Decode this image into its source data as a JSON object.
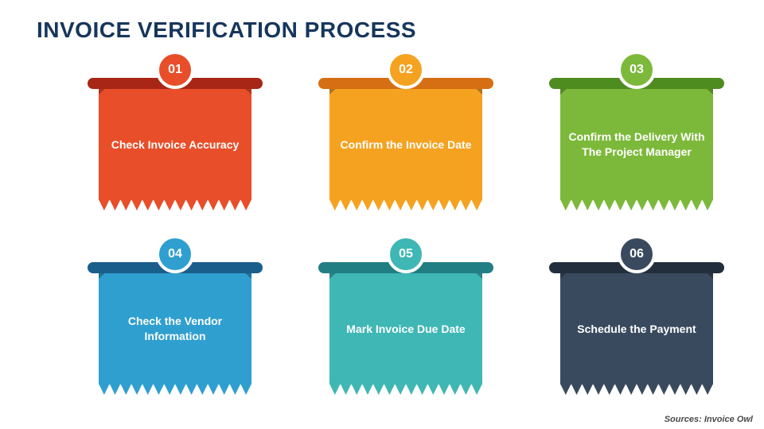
{
  "title": {
    "text": "INVOICE VERIFICATION PROCESS",
    "color": "#16365c",
    "fontsize": 28
  },
  "background": "#ffffff",
  "grid": {
    "cols": 3,
    "rows": 2
  },
  "text": {
    "color": "#ffffff",
    "fontsize": 14,
    "weight": 700
  },
  "circle": {
    "diameter": 48,
    "border_color": "#ffffff",
    "border_width": 4,
    "number_fontsize": 16
  },
  "zigzag": {
    "teeth": 14,
    "height": 14
  },
  "steps": [
    {
      "num": "01",
      "label": "Check Invoice Accuracy",
      "circle": "#e84e29",
      "bar": "#a82616",
      "banner": "#e84e29"
    },
    {
      "num": "02",
      "label": "Confirm the Invoice Date",
      "circle": "#f5a221",
      "bar": "#d66e14",
      "banner": "#f5a221"
    },
    {
      "num": "03",
      "label": "Confirm the Delivery With The Project Manager",
      "circle": "#7cb93a",
      "bar": "#4f8c20",
      "banner": "#7cb93a"
    },
    {
      "num": "04",
      "label": "Check the Vendor Information",
      "circle": "#2f9fd0",
      "bar": "#1a5e8c",
      "banner": "#2f9fd0"
    },
    {
      "num": "05",
      "label": "Mark Invoice Due Date",
      "circle": "#3fb7b4",
      "bar": "#217f83",
      "banner": "#3fb7b4"
    },
    {
      "num": "06",
      "label": "Schedule the Payment",
      "circle": "#3a4a5e",
      "bar": "#232e3d",
      "banner": "#3a4a5e"
    }
  ],
  "source": {
    "prefix": "Sources: ",
    "name": "Invoice Owl"
  }
}
